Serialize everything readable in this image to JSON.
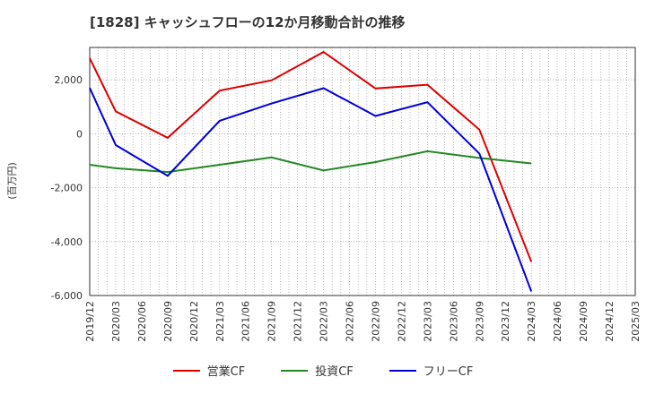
{
  "chart_data": {
    "type": "line",
    "title": "[1828]  キャッシュフローの12か月移動合計の推移",
    "ylabel": "(百万円)",
    "xlabel": "",
    "ylim": [
      -6000,
      3200
    ],
    "yticks": [
      2000,
      0,
      -2000,
      -4000,
      -6000
    ],
    "ytick_labels": [
      "2,000",
      "0",
      "-2,000",
      "-4,000",
      "-6,000"
    ],
    "x_start": "2019/12",
    "x_end": "2025/03",
    "x_tick_labels": [
      "2019/12",
      "2020/03",
      "2020/06",
      "2020/09",
      "2020/12",
      "2021/03",
      "2021/06",
      "2021/09",
      "2021/12",
      "2022/03",
      "2022/06",
      "2022/09",
      "2022/12",
      "2023/03",
      "2023/06",
      "2023/09",
      "2023/12",
      "2024/03",
      "2024/06",
      "2024/09",
      "2024/12",
      "2025/03"
    ],
    "grid": true,
    "series": [
      {
        "name": "営業CF",
        "color": "#dd0000",
        "x": [
          "2019/12",
          "2020/03",
          "2020/09",
          "2021/03",
          "2021/09",
          "2022/03",
          "2022/09",
          "2023/03",
          "2023/09",
          "2024/03"
        ],
        "values": [
          2800,
          830,
          -150,
          1600,
          1980,
          3030,
          1680,
          1820,
          150,
          -4750
        ]
      },
      {
        "name": "投資CF",
        "color": "#228822",
        "x": [
          "2019/12",
          "2020/03",
          "2020/09",
          "2021/03",
          "2021/09",
          "2022/03",
          "2022/09",
          "2023/03",
          "2023/09",
          "2024/03"
        ],
        "values": [
          -1150,
          -1280,
          -1420,
          -1150,
          -880,
          -1360,
          -1050,
          -650,
          -900,
          -1100
        ]
      },
      {
        "name": "フリーCF",
        "color": "#0000dd",
        "x": [
          "2019/12",
          "2020/03",
          "2020/09",
          "2021/03",
          "2021/09",
          "2022/03",
          "2022/09",
          "2023/03",
          "2023/09",
          "2024/03"
        ],
        "values": [
          1700,
          -420,
          -1560,
          480,
          1120,
          1690,
          660,
          1170,
          -740,
          -5850
        ]
      }
    ]
  }
}
